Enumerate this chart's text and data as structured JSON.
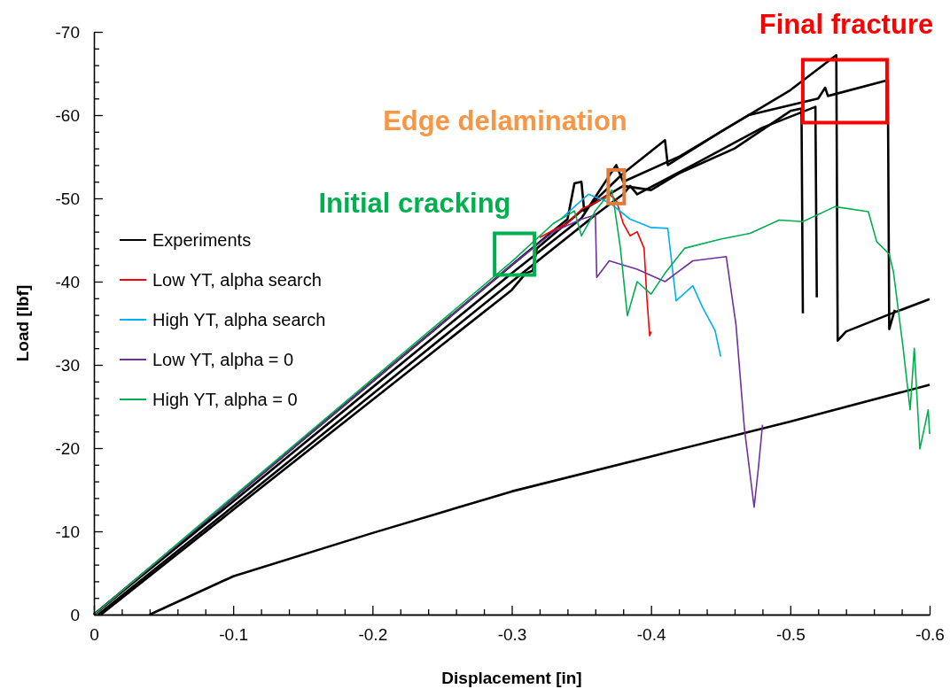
{
  "chart_data": {
    "type": "line",
    "xlabel": "Displacement [in]",
    "ylabel": "Load [lbf]",
    "xlim": [
      0,
      -0.6
    ],
    "ylim": [
      0,
      -70
    ],
    "xticks": [
      0,
      {
        "value": -0.02,
        "label": null
      },
      {
        "value": -0.04,
        "label": null
      },
      {
        "value": -0.06,
        "label": null
      },
      {
        "value": -0.08,
        "label": null
      },
      -0.1,
      {
        "value": -0.12,
        "label": null
      },
      {
        "value": -0.14,
        "label": null
      },
      {
        "value": -0.16,
        "label": null
      },
      {
        "value": -0.18,
        "label": null
      },
      -0.2,
      {
        "value": -0.22,
        "label": null
      },
      {
        "value": -0.24,
        "label": null
      },
      {
        "value": -0.26,
        "label": null
      },
      {
        "value": -0.28,
        "label": null
      },
      -0.3,
      {
        "value": -0.32,
        "label": null
      },
      {
        "value": -0.34,
        "label": null
      },
      {
        "value": -0.36,
        "label": null
      },
      {
        "value": -0.38,
        "label": null
      },
      -0.4,
      {
        "value": -0.42,
        "label": null
      },
      {
        "value": -0.44,
        "label": null
      },
      {
        "value": -0.46,
        "label": null
      },
      {
        "value": -0.48,
        "label": null
      },
      -0.5,
      {
        "value": -0.52,
        "label": null
      },
      {
        "value": -0.54,
        "label": null
      },
      {
        "value": -0.56,
        "label": null
      },
      {
        "value": -0.58,
        "label": null
      },
      -0.6
    ],
    "yticks": [
      0,
      {
        "value": -2,
        "label": null
      },
      {
        "value": -4,
        "label": null
      },
      {
        "value": -6,
        "label": null
      },
      {
        "value": -8,
        "label": null
      },
      -10,
      {
        "value": -12,
        "label": null
      },
      {
        "value": -14,
        "label": null
      },
      {
        "value": -16,
        "label": null
      },
      {
        "value": -18,
        "label": null
      },
      -20,
      {
        "value": -22,
        "label": null
      },
      {
        "value": -24,
        "label": null
      },
      {
        "value": -26,
        "label": null
      },
      {
        "value": -28,
        "label": null
      },
      -30,
      {
        "value": -32,
        "label": null
      },
      {
        "value": -34,
        "label": null
      },
      {
        "value": -36,
        "label": null
      },
      {
        "value": -38,
        "label": null
      },
      -40,
      {
        "value": -42,
        "label": null
      },
      {
        "value": -44,
        "label": null
      },
      {
        "value": -46,
        "label": null
      },
      {
        "value": -48,
        "label": null
      },
      -50,
      {
        "value": -52,
        "label": null
      },
      {
        "value": -54,
        "label": null
      },
      {
        "value": -56,
        "label": null
      },
      {
        "value": -58,
        "label": null
      },
      -60,
      {
        "value": -62,
        "label": null
      },
      {
        "value": -64,
        "label": null
      },
      {
        "value": -66,
        "label": null
      },
      {
        "value": -68,
        "label": null
      },
      -70
    ],
    "legend": "left",
    "grid": false,
    "line_style": "solid",
    "marker": "none",
    "annotations": [
      {
        "text": "Final fracture",
        "x": -0.55,
        "y": -63.3
      },
      {
        "text": "Edge delamination",
        "x": -0.375,
        "y": -51.4
      },
      {
        "text": "Initial cracking",
        "x": -0.302,
        "y": -43.3
      }
    ],
    "series": [
      {
        "name": "Experiments",
        "color": "#000000",
        "x": [
          0,
          -0.1,
          -0.2,
          -0.3,
          -0.34,
          -0.345,
          -0.35,
          -0.352,
          -0.38,
          -0.41,
          -0.412,
          -0.45,
          -0.5,
          -0.533,
          -0.534,
          -0.54,
          -0.57,
          -0.6
        ],
        "values": [
          0,
          -14,
          -28,
          -42,
          -47.5,
          -51.8,
          -52,
          -48.5,
          -53,
          -57,
          -54,
          -58,
          -63,
          -67.2,
          -32.9,
          -34,
          -36,
          -37.9
        ]
      },
      {
        "color": "#000000",
        "x": [
          0,
          -0.1,
          -0.2,
          -0.3,
          -0.35,
          -0.375,
          -0.38,
          -0.42,
          -0.47,
          -0.52,
          -0.525,
          -0.527,
          -0.57,
          -0.571,
          -0.575
        ],
        "values": [
          0,
          -13.6,
          -27.3,
          -41,
          -47.6,
          -54,
          -52,
          -55,
          -60,
          -62,
          -63.3,
          -62.3,
          -64.2,
          -34.3,
          -36.6
        ]
      },
      {
        "color": "#000000",
        "x": [
          -0.005,
          -0.1,
          -0.2,
          -0.3,
          -0.31,
          -0.315,
          -0.318,
          -0.35,
          -0.38,
          -0.4,
          -0.42,
          -0.46,
          -0.5,
          -0.508,
          -0.509
        ],
        "values": [
          0,
          -12.6,
          -25.8,
          -39,
          -41,
          -41.3,
          -44,
          -48.5,
          -51.5,
          -51,
          -53,
          -56,
          -60.5,
          -60.8,
          -36.2
        ]
      },
      {
        "color": "#000000",
        "x": [
          -0.003,
          -0.1,
          -0.2,
          -0.3,
          -0.36,
          -0.38,
          -0.385,
          -0.39,
          -0.43,
          -0.48,
          -0.518,
          -0.519
        ],
        "values": [
          0,
          -13,
          -26.5,
          -40,
          -48,
          -50.5,
          -51.5,
          -50.5,
          -54,
          -58.5,
          -61,
          -38.1
        ]
      },
      {
        "color": "#000000",
        "x": [
          -0.04,
          -0.1,
          -0.2,
          -0.3,
          -0.4,
          -0.5,
          -0.6
        ],
        "values": [
          0,
          -4.6,
          -9.8,
          -14.8,
          -19,
          -23.2,
          -27.6
        ]
      },
      {
        "name": "Low YT, alpha search",
        "color": "#ff0000",
        "x": [
          -0.32,
          -0.33,
          -0.34,
          -0.35,
          -0.36,
          -0.37,
          -0.375,
          -0.38,
          -0.385,
          -0.39,
          -0.395,
          -0.397,
          -0.399,
          -0.4
        ],
        "values": [
          -45.3,
          -46.2,
          -47,
          -48.7,
          -49.5,
          -50.5,
          -49.8,
          -47,
          -45.5,
          -46,
          -44,
          -38,
          -33.5,
          -34
        ]
      },
      {
        "name": "High YT, alpha search",
        "color": "#00b0f0",
        "x": [
          -0.335,
          -0.345,
          -0.355,
          -0.37,
          -0.385,
          -0.4,
          -0.412,
          -0.418,
          -0.43,
          -0.437,
          -0.446,
          -0.45
        ],
        "values": [
          -47.5,
          -49,
          -50.5,
          -49.5,
          -47.5,
          -46.5,
          -46.4,
          -37.7,
          -39.5,
          -36.9,
          -34.1,
          -31
        ]
      },
      {
        "name": "Low YT, alpha = 0",
        "color": "#7030a0",
        "x": [
          0,
          -0.1,
          -0.2,
          -0.3,
          -0.33,
          -0.35,
          -0.36,
          -0.361,
          -0.37,
          -0.39,
          -0.41,
          -0.43,
          -0.454,
          -0.461,
          -0.467,
          -0.474,
          -0.477,
          -0.48
        ],
        "values": [
          0,
          -14,
          -28,
          -42,
          -46,
          -47.5,
          -48,
          -40.5,
          -42.5,
          -41.5,
          -40,
          -42.5,
          -43,
          -34.8,
          -22.4,
          -12.9,
          -17.5,
          -22.8
        ]
      },
      {
        "name": "High YT, alpha = 0",
        "color": "#00b050",
        "x": [
          0,
          -0.1,
          -0.2,
          -0.3,
          -0.33,
          -0.345,
          -0.35,
          -0.36,
          -0.372,
          -0.378,
          -0.383,
          -0.39,
          -0.4,
          -0.41,
          -0.424,
          -0.45,
          -0.471,
          -0.492,
          -0.509,
          -0.532,
          -0.556,
          -0.562,
          -0.571,
          -0.574,
          -0.581,
          -0.586,
          -0.589,
          -0.593,
          -0.599,
          -0.6
        ],
        "values": [
          0,
          -14.2,
          -28.3,
          -42.4,
          -47,
          -48.5,
          -45.5,
          -48.5,
          -51,
          -44,
          -35.9,
          -40,
          -38.5,
          -41,
          -44,
          -45.1,
          -45.8,
          -47.4,
          -47.2,
          -49,
          -48.4,
          -44.8,
          -43.3,
          -41.2,
          -32,
          -24.6,
          -32,
          -19.9,
          -24.6,
          -21.7
        ]
      }
    ]
  }
}
